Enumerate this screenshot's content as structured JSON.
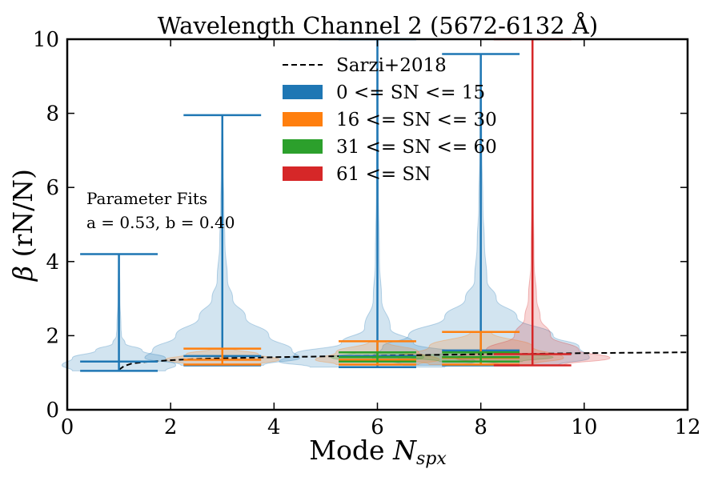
{
  "chart_data": {
    "type": "violin",
    "title": "Wavelength Channel 2 (5672-6132 Å)",
    "xlabel_main": "Mode ",
    "xlabel_symbol": "N",
    "xlabel_sub": "spx",
    "ylabel_symbol": "β",
    "ylabel_rest": " (rN/N)",
    "xlim": [
      0,
      12
    ],
    "ylim": [
      0,
      10
    ],
    "xticks": [
      0,
      2,
      4,
      6,
      8,
      10,
      12
    ],
    "yticks": [
      0,
      2,
      4,
      6,
      8,
      10
    ],
    "grid": false,
    "legend_position": "top-center",
    "annotation": {
      "line1": "Parameter Fits",
      "line2": "a = 0.53, b = 0.40"
    },
    "reference_curve": {
      "name": "Sarzi+2018",
      "color": "#000000",
      "style": "dashed",
      "x": [
        1.0,
        1.1,
        1.25,
        1.5,
        2.0,
        2.5,
        3.0,
        4.0,
        5.0,
        6.0,
        7.0,
        8.0,
        9.0,
        10.0,
        11.0,
        12.0
      ],
      "y": [
        1.08,
        1.18,
        1.25,
        1.29,
        1.34,
        1.37,
        1.39,
        1.42,
        1.44,
        1.46,
        1.48,
        1.5,
        1.51,
        1.53,
        1.54,
        1.55
      ]
    },
    "series": [
      {
        "name": "0 <= SN <= 15",
        "color": "#1f77b4",
        "violins": [
          {
            "x": 1,
            "min": 1.05,
            "max": 4.2,
            "median": 1.3,
            "cap_half": 0.75,
            "profile": [
              [
                1.05,
                0.9
              ],
              [
                1.2,
                1.1
              ],
              [
                1.4,
                0.9
              ],
              [
                1.6,
                0.45
              ],
              [
                1.8,
                0.12
              ],
              [
                2.0,
                0.05
              ],
              [
                2.2,
                0.04
              ],
              [
                3.0,
                0.02
              ],
              [
                4.2,
                0.01
              ]
            ]
          },
          {
            "x": 3,
            "min": 1.2,
            "max": 7.95,
            "median": 1.45,
            "cap_half": 0.75,
            "profile": [
              [
                1.2,
                0.8
              ],
              [
                1.4,
                1.5
              ],
              [
                1.6,
                1.35
              ],
              [
                2.0,
                0.9
              ],
              [
                2.5,
                0.45
              ],
              [
                3.0,
                0.2
              ],
              [
                3.5,
                0.1
              ],
              [
                4.5,
                0.05
              ],
              [
                5.5,
                0.03
              ],
              [
                6.5,
                0.02
              ],
              [
                7.95,
                0.01
              ]
            ]
          },
          {
            "x": 6,
            "min": 1.15,
            "max": 10.0,
            "median": 1.45,
            "cap_half": 0.75,
            "profile": [
              [
                1.15,
                1.3
              ],
              [
                1.3,
                1.9
              ],
              [
                1.5,
                1.6
              ],
              [
                1.8,
                0.7
              ],
              [
                2.2,
                0.25
              ],
              [
                3.0,
                0.08
              ],
              [
                4.0,
                0.04
              ],
              [
                6.0,
                0.02
              ],
              [
                8.0,
                0.015
              ],
              [
                10.0,
                0.01
              ]
            ]
          },
          {
            "x": 8,
            "min": 1.2,
            "max": 9.6,
            "median": 1.6,
            "cap_half": 0.75,
            "profile": [
              [
                1.2,
                1.5
              ],
              [
                1.4,
                2.1
              ],
              [
                1.7,
                1.9
              ],
              [
                2.0,
                1.4
              ],
              [
                2.5,
                0.7
              ],
              [
                3.0,
                0.3
              ],
              [
                3.5,
                0.12
              ],
              [
                4.5,
                0.07
              ],
              [
                5.5,
                0.04
              ],
              [
                7.0,
                0.02
              ],
              [
                9.6,
                0.01
              ]
            ]
          }
        ]
      },
      {
        "name": "16 <= SN <= 30",
        "color": "#ff7f0e",
        "violins": [
          {
            "x": 3,
            "min": 1.22,
            "max": 1.65,
            "median": 1.35,
            "cap_half": 0.75,
            "profile": [
              [
                1.22,
                0.7
              ],
              [
                1.35,
                1.1
              ],
              [
                1.5,
                0.7
              ],
              [
                1.65,
                0.2
              ]
            ]
          },
          {
            "x": 6,
            "min": 1.22,
            "max": 1.85,
            "median": 1.35,
            "cap_half": 0.75,
            "profile": [
              [
                1.22,
                0.8
              ],
              [
                1.35,
                1.2
              ],
              [
                1.55,
                0.8
              ],
              [
                1.85,
                0.15
              ]
            ]
          },
          {
            "x": 8,
            "min": 1.22,
            "max": 2.1,
            "median": 1.4,
            "cap_half": 0.75,
            "profile": [
              [
                1.22,
                1.0
              ],
              [
                1.4,
                1.6
              ],
              [
                1.7,
                1.0
              ],
              [
                2.1,
                0.2
              ]
            ]
          }
        ]
      },
      {
        "name": "31 <= SN <= 60",
        "color": "#2ca02c",
        "violins": [
          {
            "x": 6,
            "min": 1.3,
            "max": 1.55,
            "median": 1.42,
            "cap_half": 0.75,
            "profile": [
              [
                1.3,
                0.6
              ],
              [
                1.42,
                0.9
              ],
              [
                1.55,
                0.4
              ]
            ]
          },
          {
            "x": 8,
            "min": 1.3,
            "max": 1.55,
            "median": 1.42,
            "cap_half": 0.75,
            "profile": [
              [
                1.3,
                0.8
              ],
              [
                1.42,
                1.4
              ],
              [
                1.55,
                0.6
              ]
            ]
          }
        ]
      },
      {
        "name": "61 <= SN",
        "color": "#d62728",
        "violins": [
          {
            "x": 9,
            "min": 1.2,
            "max": 10.0,
            "median": 1.5,
            "cap_half": 0.75,
            "profile": [
              [
                1.2,
                0.6
              ],
              [
                1.4,
                1.5
              ],
              [
                1.6,
                0.9
              ],
              [
                2.0,
                0.35
              ],
              [
                2.5,
                0.15
              ],
              [
                3.0,
                0.08
              ],
              [
                4.0,
                0.03
              ],
              [
                6.0,
                0.015
              ],
              [
                10.0,
                0.01
              ]
            ]
          }
        ]
      }
    ]
  }
}
